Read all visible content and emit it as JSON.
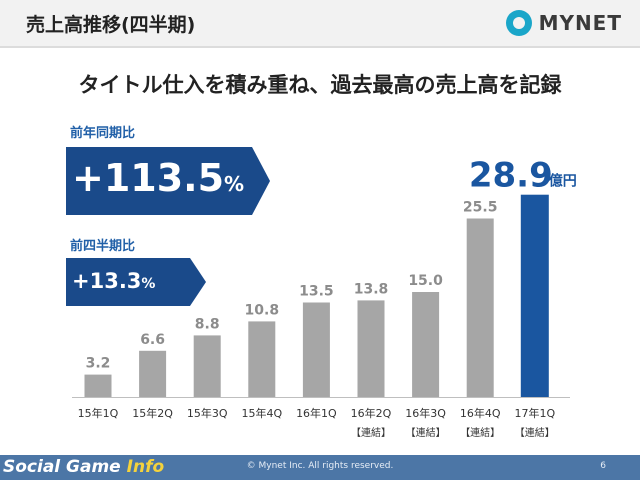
{
  "header": {
    "title": "売上高推移(四半期)",
    "logo_text": "MYNET"
  },
  "headline": "タイトル仕入を積み重ね、過去最高の売上高を記録",
  "yoy": {
    "label": "前年同期比",
    "value": "+113.5",
    "unit": "%"
  },
  "qoq": {
    "label": "前四半期比",
    "value": "+13.3",
    "unit": "%"
  },
  "chart_data": {
    "type": "bar",
    "categories": [
      "15年1Q",
      "15年2Q",
      "15年3Q",
      "15年4Q",
      "16年1Q",
      "16年2Q",
      "16年3Q",
      "16年4Q",
      "17年1Q"
    ],
    "sublabels": [
      "",
      "",
      "",
      "",
      "",
      "【連結】",
      "【連結】",
      "【連結】",
      "【連結】"
    ],
    "values": [
      3.2,
      6.6,
      8.8,
      10.8,
      13.5,
      13.8,
      15.0,
      25.5,
      28.9
    ],
    "value_labels": [
      "3.2",
      "6.6",
      "8.8",
      "10.8",
      "13.5",
      "13.8",
      "15.0",
      "25.5",
      "28.9"
    ],
    "highlight_index": 8,
    "highlight_unit": "億円",
    "colors": {
      "normal": "#a6a6a6",
      "highlight": "#1a56a0",
      "label": "#8c8c8c"
    }
  },
  "footer": {
    "brand_main": "Social Game ",
    "brand_accent": "Info",
    "copyright": "© Mynet Inc. All rights reserved.",
    "page": "6"
  }
}
